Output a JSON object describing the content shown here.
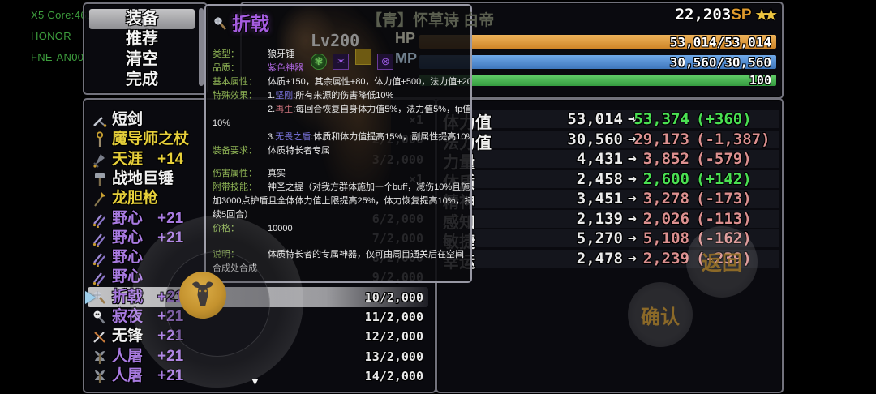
{
  "system": {
    "lines": [
      "X5 Core:46133",
      "HONOR",
      "FNE-AN00"
    ]
  },
  "menu": {
    "items": [
      {
        "label": "装备",
        "selected": true
      },
      {
        "label": "推荐",
        "selected": false
      },
      {
        "label": "清空",
        "selected": false
      },
      {
        "label": "完成",
        "selected": false
      }
    ]
  },
  "tooltip": {
    "item_name": "折戟",
    "type_label": "类型：",
    "type_value": "狼牙锤",
    "quality_label": "品质：",
    "quality_value": "紫色神器",
    "base_label": "基本属性：",
    "base_value": "体质+150，其余属性+80，体力值+500，法力值+200",
    "effect_label": "特殊效果：",
    "effect1_prefix": "1.",
    "effect1_name": "坚刚",
    "effect1_text": ":所有来源的伤害降低10%",
    "effect2_prefix": "2.",
    "effect2_name": "再生",
    "effect2_text": ":每回合恢复自身体力值5%，法力值5%，tp值",
    "effect2_wrap": "10%",
    "effect3_prefix": "3.",
    "effect3_name": "无畏之盾",
    "effect3_text": ":体质和体力值提高15%，副属性提高10%",
    "req_label": "装备要求：",
    "req_value": "体质特长者专属",
    "dmg_label": "伤害属性：",
    "dmg_value": "真实",
    "skill_label": "附带技能：",
    "skill_line1": "神圣之握（对我方群体施加一个buff，减伤10%且施",
    "skill_line2": "加3000点护盾且全体体力值上限提高25%，体力恢复提高10%，持",
    "skill_line3": "续5回合）",
    "price_label": "价格：",
    "price_value": "10000",
    "desc_label": "说明：",
    "desc_line1": "体质特长者的专属神器，仅可由周目通关后在空间",
    "desc_line2": "合成处合成"
  },
  "character": {
    "name": "【青】怀草诗 白帝",
    "level": "Lv200",
    "sp_value": "22,203",
    "sp_suffix": "SP",
    "stars": "★★",
    "hp_label": "HP",
    "hp_value": "53,014/53,014",
    "mp_label": "MP",
    "mp_value": "30,560/30,560",
    "exp_value": "100"
  },
  "inventory": {
    "scroll_down_icon": "▼",
    "items": [
      {
        "name": "短剑",
        "enh": "",
        "count": "×1",
        "color": "white",
        "enh_color": "purple",
        "icon": "sword",
        "selected": false
      },
      {
        "name": "魔导师之杖",
        "enh": "",
        "count": "2/2,000",
        "color": "gold",
        "enh_color": "purple",
        "icon": "staff",
        "selected": false
      },
      {
        "name": "天涯",
        "enh": "+14",
        "count": "3/2,000",
        "color": "gold",
        "enh_color": "gold",
        "icon": "greatsword",
        "selected": false
      },
      {
        "name": "战地巨锤",
        "enh": "",
        "count": "×1",
        "color": "white",
        "enh_color": "purple",
        "icon": "hammer",
        "selected": false
      },
      {
        "name": "龙胆枪",
        "enh": "",
        "count": "",
        "color": "gold",
        "enh_color": "purple",
        "icon": "spear",
        "selected": false
      },
      {
        "name": "野心",
        "enh": "+21",
        "count": "6/2,000",
        "color": "purple",
        "enh_color": "purple",
        "icon": "dualswords",
        "selected": false
      },
      {
        "name": "野心",
        "enh": "+21",
        "count": "7/2,000",
        "color": "purple",
        "enh_color": "purple",
        "icon": "dualswords",
        "selected": false
      },
      {
        "name": "野心",
        "enh": "",
        "count": "8/2,000",
        "color": "purple",
        "enh_color": "purple",
        "icon": "dualswords",
        "selected": false
      },
      {
        "name": "野心",
        "enh": "",
        "count": "9/2,000",
        "color": "purple",
        "enh_color": "purple",
        "icon": "dualswords",
        "selected": false
      },
      {
        "name": "折戟",
        "enh": "+21",
        "count": "10/2,000",
        "color": "purple",
        "enh_color": "purple",
        "icon": "mace",
        "selected": true
      },
      {
        "name": "寂夜",
        "enh": "+21",
        "count": "11/2,000",
        "color": "purple",
        "enh_color": "purple",
        "icon": "skullhammer",
        "selected": false
      },
      {
        "name": "无锋",
        "enh": "+21",
        "count": "12/2,000",
        "color": "white",
        "enh_color": "purple",
        "icon": "crossswords",
        "selected": false
      },
      {
        "name": "人屠",
        "enh": "+21",
        "count": "13/2,000",
        "color": "purple",
        "enh_color": "purple",
        "icon": "axe",
        "selected": false
      },
      {
        "name": "人屠",
        "enh": "+21",
        "count": "14/2,000",
        "color": "purple",
        "enh_color": "purple",
        "icon": "axe",
        "selected": false
      }
    ]
  },
  "stats": {
    "arrow": "→",
    "rows": [
      {
        "label": "体力值",
        "old": "53,014",
        "new": "53,374",
        "delta": "(+360)",
        "dir": "up"
      },
      {
        "label": "法力值",
        "old": "30,560",
        "new": "29,173",
        "delta": "(-1,387)",
        "dir": "down"
      },
      {
        "label": "力量",
        "old": "4,431",
        "new": "3,852",
        "delta": "(-579)",
        "dir": "down"
      },
      {
        "label": "体质",
        "old": "2,458",
        "new": "2,600",
        "delta": "(+142)",
        "dir": "up"
      },
      {
        "label": "精神",
        "old": "3,451",
        "new": "3,278",
        "delta": "(-173)",
        "dir": "down"
      },
      {
        "label": "感知",
        "old": "2,139",
        "new": "2,026",
        "delta": "(-113)",
        "dir": "down"
      },
      {
        "label": "敏捷",
        "old": "5,270",
        "new": "5,108",
        "delta": "(-162)",
        "dir": "down"
      },
      {
        "label": "幸运",
        "old": "2,478",
        "new": "2,239",
        "delta": "(-239)",
        "dir": "down"
      }
    ]
  },
  "action_buttons": {
    "confirm": "确认",
    "back": "返回"
  },
  "colors": {
    "gold_item": "#e6cf3a",
    "purple_item": "#a87ae0",
    "white_item": "#f0f0f0",
    "hp_bar": "#e0973d",
    "mp_bar": "#5b97dd",
    "exp_bar": "#4cbb55",
    "stat_up": "#4ae052",
    "stat_down": "#dc9090",
    "sp_orange": "#de9a2d",
    "star_gold": "#ecc440",
    "label_green": "#8fb455",
    "system_green": "#3d9e3d"
  }
}
